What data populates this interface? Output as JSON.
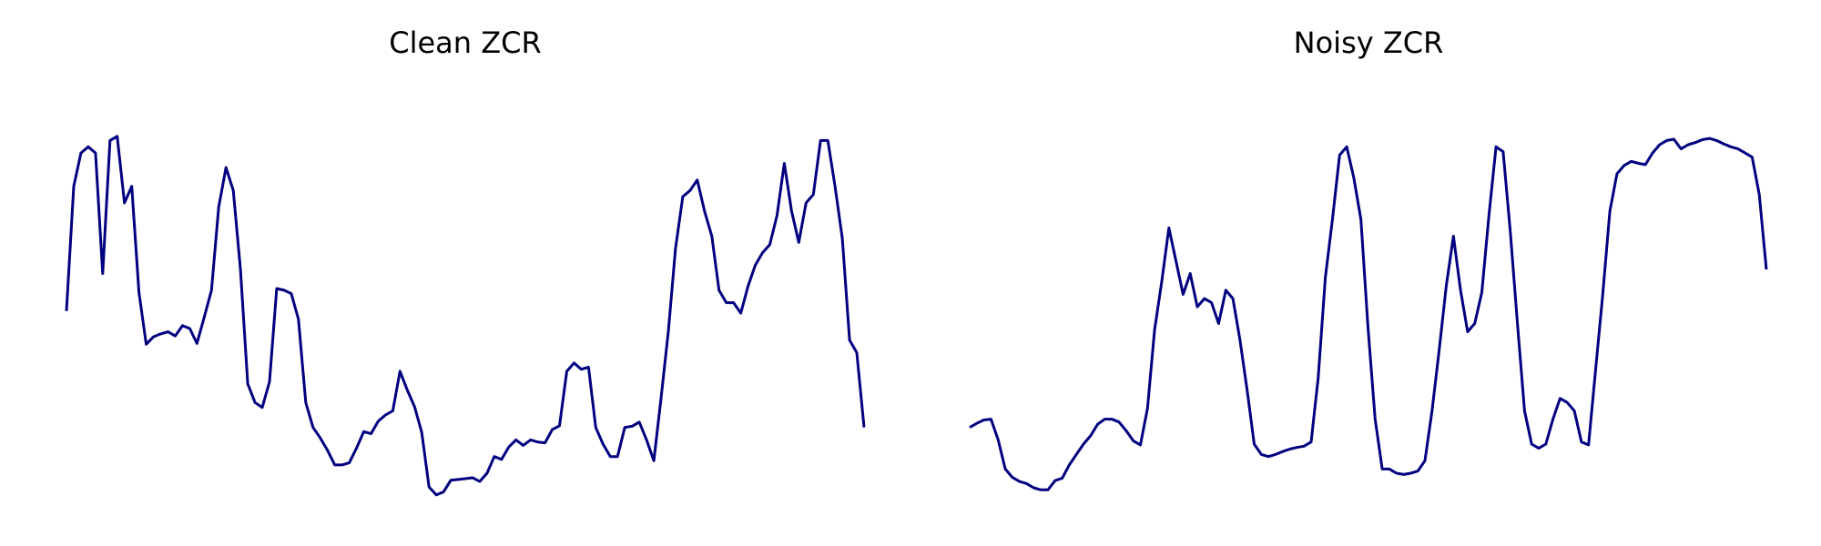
{
  "colors": {
    "background": "#ffffff",
    "line": "#000080",
    "title": "#000000"
  },
  "chart_data": [
    {
      "type": "line",
      "title": "Clean ZCR",
      "xlabel": "",
      "ylabel": "",
      "axes_visible": false,
      "grid": false,
      "series": [
        {
          "values": [
            0.46,
            0.76,
            0.84,
            0.855,
            0.84,
            0.55,
            0.87,
            0.88,
            0.72,
            0.76,
            0.505,
            0.38,
            0.398,
            0.405,
            0.41,
            0.4,
            0.425,
            0.418,
            0.382,
            0.445,
            0.51,
            0.71,
            0.805,
            0.75,
            0.56,
            0.285,
            0.24,
            0.228,
            0.29,
            0.514,
            0.51,
            0.502,
            0.44,
            0.24,
            0.18,
            0.155,
            0.125,
            0.09,
            0.09,
            0.095,
            0.13,
            0.17,
            0.165,
            0.195,
            0.21,
            0.22,
            0.315,
            0.27,
            0.23,
            0.168,
            0.037,
            0.018,
            0.025,
            0.053,
            0.055,
            0.057,
            0.059,
            0.05,
            0.07,
            0.11,
            0.103,
            0.133,
            0.15,
            0.137,
            0.15,
            0.145,
            0.143,
            0.175,
            0.184,
            0.315,
            0.335,
            0.32,
            0.325,
            0.18,
            0.14,
            0.11,
            0.11,
            0.18,
            0.183,
            0.193,
            0.15,
            0.1,
            0.25,
            0.41,
            0.61,
            0.735,
            0.75,
            0.775,
            0.7,
            0.64,
            0.51,
            0.48,
            0.48,
            0.455,
            0.52,
            0.57,
            0.6,
            0.62,
            0.69,
            0.815,
            0.7,
            0.625,
            0.72,
            0.74,
            0.87,
            0.87,
            0.76,
            0.635,
            0.39,
            0.36,
            0.18
          ]
        }
      ]
    },
    {
      "type": "line",
      "title": "Noisy ZCR",
      "xlabel": "",
      "ylabel": "",
      "axes_visible": false,
      "grid": false,
      "series": [
        {
          "values": [
            0.18,
            0.19,
            0.198,
            0.2,
            0.15,
            0.08,
            0.06,
            0.05,
            0.045,
            0.035,
            0.03,
            0.03,
            0.052,
            0.058,
            0.09,
            0.115,
            0.14,
            0.16,
            0.188,
            0.2,
            0.2,
            0.193,
            0.172,
            0.148,
            0.138,
            0.226,
            0.415,
            0.53,
            0.66,
            0.58,
            0.5,
            0.55,
            0.47,
            0.49,
            0.48,
            0.43,
            0.51,
            0.49,
            0.39,
            0.27,
            0.14,
            0.115,
            0.11,
            0.115,
            0.122,
            0.128,
            0.132,
            0.135,
            0.145,
            0.3,
            0.54,
            0.68,
            0.835,
            0.855,
            0.78,
            0.68,
            0.42,
            0.2,
            0.08,
            0.08,
            0.07,
            0.067,
            0.07,
            0.075,
            0.1,
            0.22,
            0.365,
            0.52,
            0.64,
            0.51,
            0.41,
            0.43,
            0.505,
            0.69,
            0.855,
            0.843,
            0.65,
            0.43,
            0.22,
            0.14,
            0.13,
            0.14,
            0.2,
            0.25,
            0.24,
            0.22,
            0.145,
            0.138,
            0.32,
            0.5,
            0.7,
            0.79,
            0.81,
            0.82,
            0.815,
            0.812,
            0.84,
            0.86,
            0.87,
            0.873,
            0.85,
            0.86,
            0.865,
            0.872,
            0.875,
            0.87,
            0.862,
            0.855,
            0.85,
            0.84,
            0.83,
            0.74,
            0.56
          ]
        }
      ]
    }
  ]
}
